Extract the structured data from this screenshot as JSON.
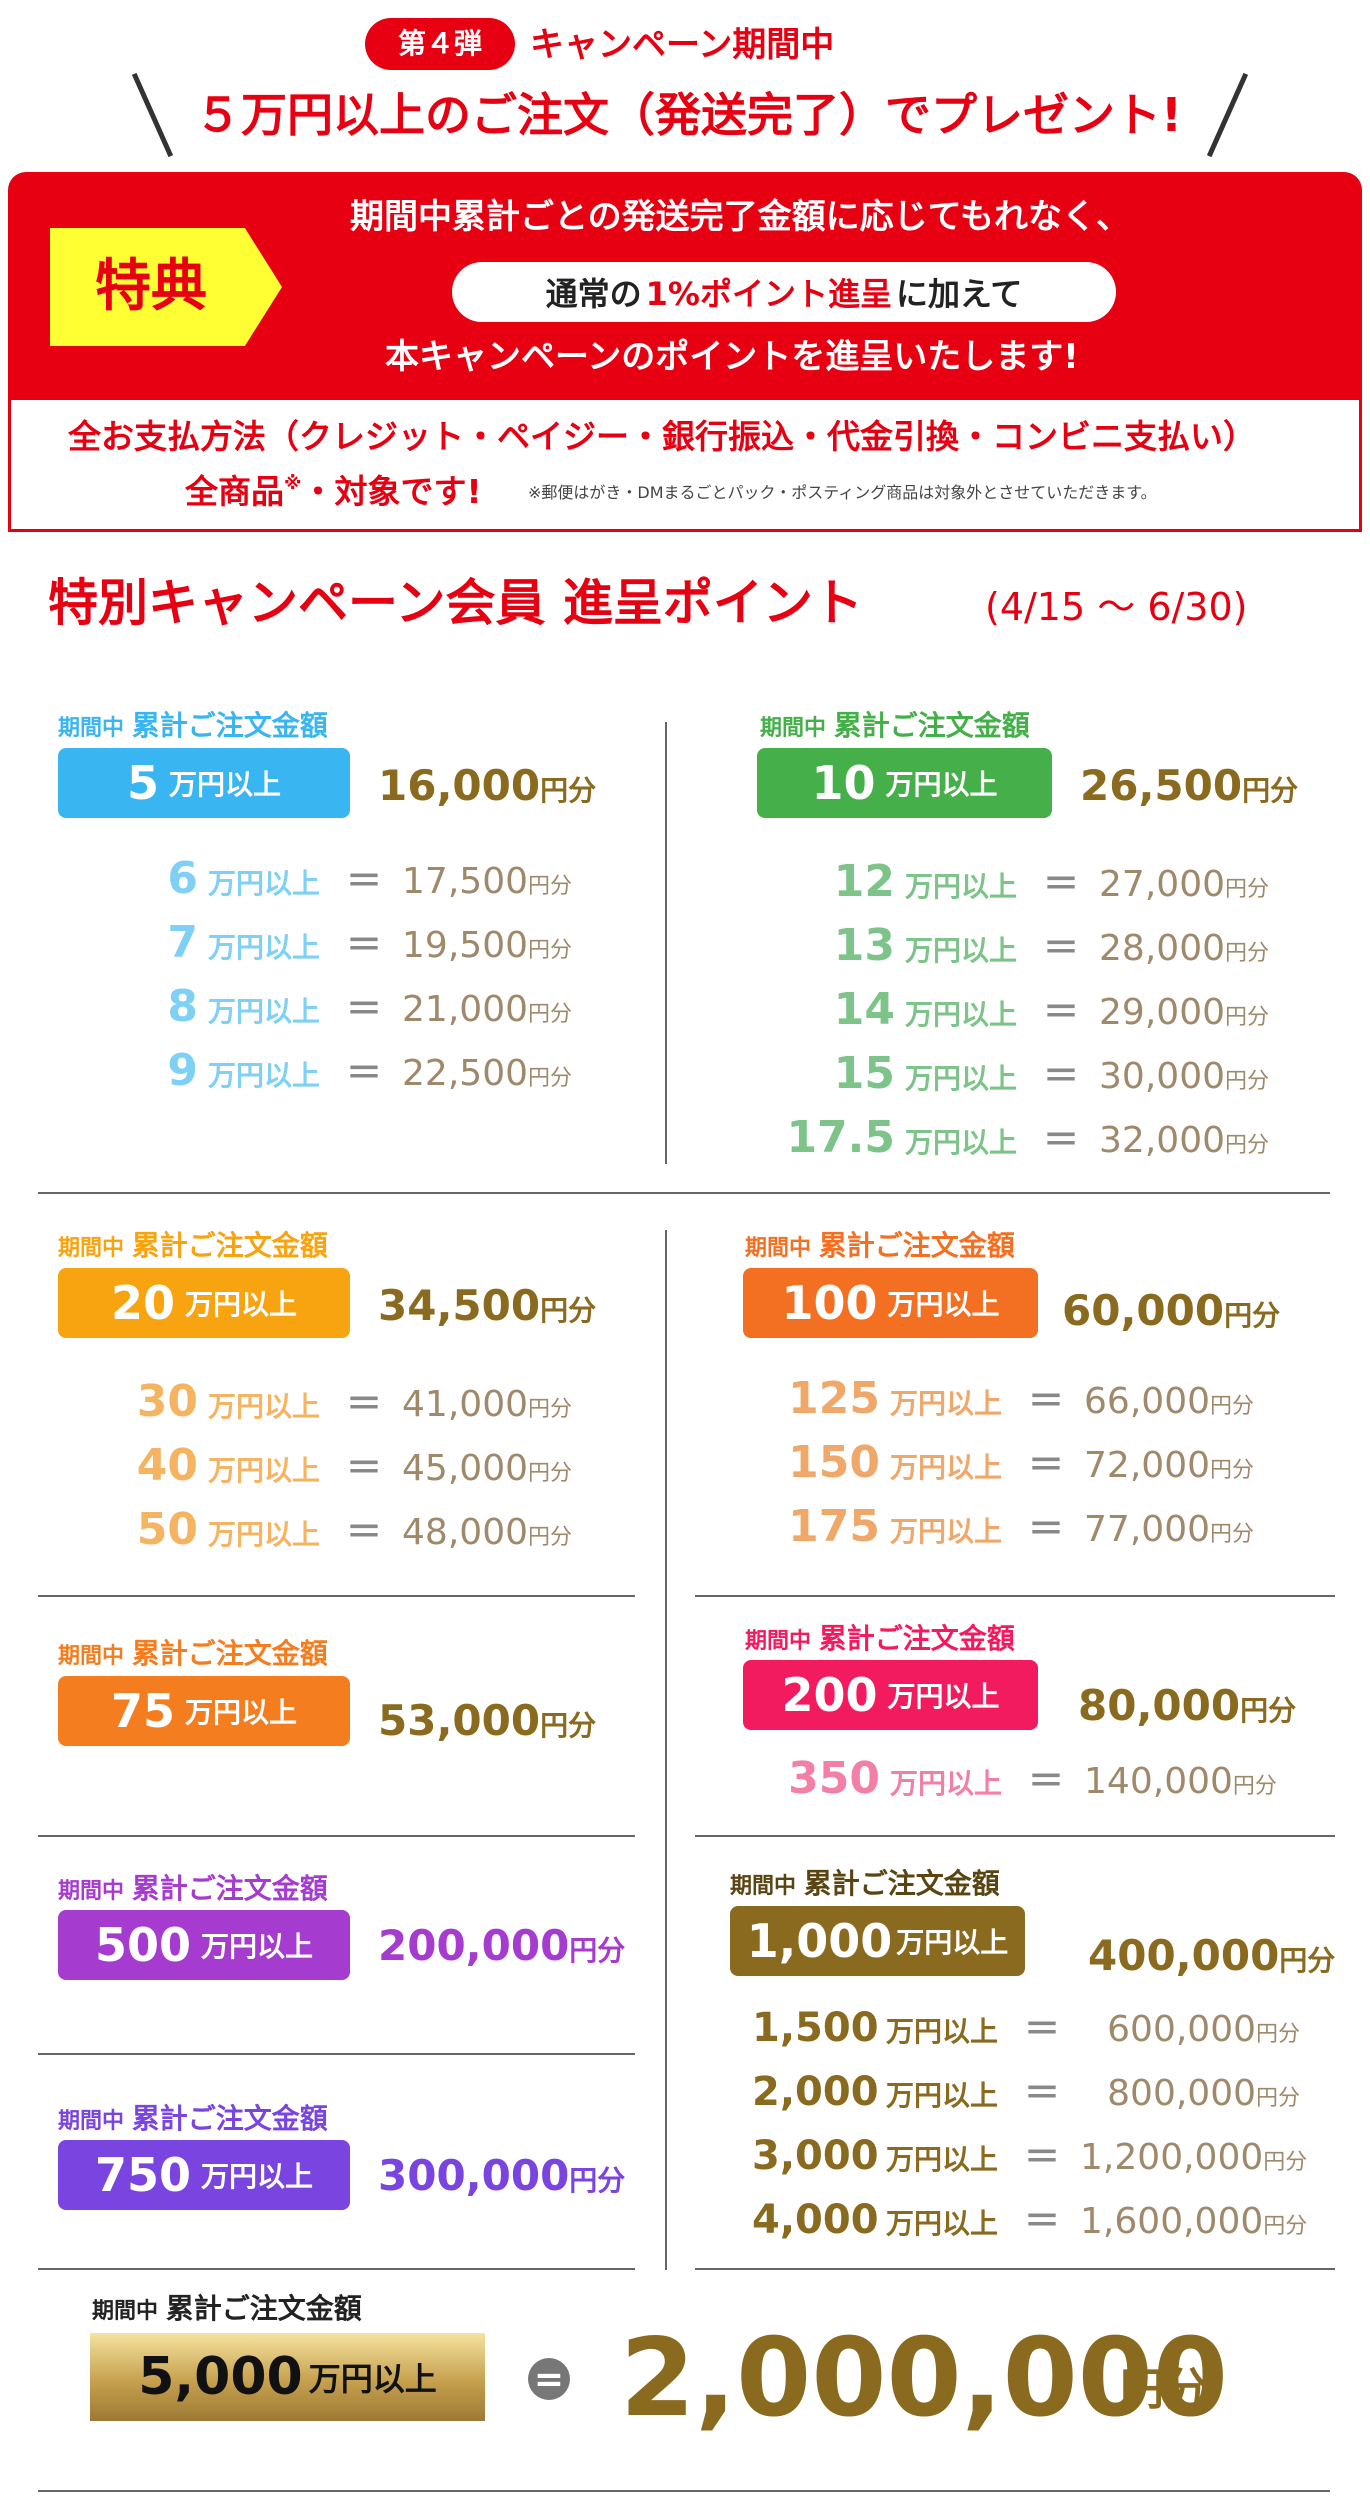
{
  "header": {
    "badge": "第４弾",
    "campaign": "キャンペーン期間中",
    "main": "５万円以上のご注文（発送完了）でプレゼント!"
  },
  "benefit": {
    "tag": "特典",
    "line1": "期間中累計ごとの発送完了金額に応じてもれなく、",
    "pill_a": "通常の",
    "pill_b": "1%ポイント進呈",
    "pill_c": "に加えて",
    "line3": "本キャンペーンのポイントを進呈いたします!",
    "payment": "全お支払方法（クレジット・ペイジー・銀行振込・代金引換・コンビニ支払い）",
    "all_a": "全商品",
    "all_mark": "※",
    "all_b": "・対象です!",
    "note": "※郵便はがき・DMまるごとパック・ポスティング商品は対象外とさせていただきます。"
  },
  "section": {
    "title": "特別キャンペーン会員 進呈ポイント",
    "date": "(4/15 ～ 6/30)"
  },
  "common": {
    "label_small": "期間中",
    "label_big": "累計ご注文金額",
    "unit": "万円以上",
    "yen": "円分",
    "eq": "＝"
  },
  "tiers": {
    "t5": {
      "amount": "5",
      "points": "16,000",
      "color": "#39b5f2",
      "sub": "#7fd0f5",
      "rows": [
        {
          "a": "6",
          "v": "17,500"
        },
        {
          "a": "7",
          "v": "19,500"
        },
        {
          "a": "8",
          "v": "21,000"
        },
        {
          "a": "9",
          "v": "22,500"
        }
      ]
    },
    "t10": {
      "amount": "10",
      "points": "26,500",
      "color": "#45b04a",
      "sub": "#7ec48a",
      "rows": [
        {
          "a": "12",
          "v": "27,000"
        },
        {
          "a": "13",
          "v": "28,000"
        },
        {
          "a": "14",
          "v": "29,000"
        },
        {
          "a": "15",
          "v": "30,000"
        },
        {
          "a": "17.5",
          "v": "32,000"
        }
      ]
    },
    "t20": {
      "amount": "20",
      "points": "34,500",
      "color": "#f8a310",
      "sub": "#f5b462",
      "rows": [
        {
          "a": "30",
          "v": "41,000"
        },
        {
          "a": "40",
          "v": "45,000"
        },
        {
          "a": "50",
          "v": "48,000"
        }
      ]
    },
    "t100": {
      "amount": "100",
      "points": "60,000",
      "color": "#f36f21",
      "sub": "#f0a86a",
      "rows": [
        {
          "a": "125",
          "v": "66,000"
        },
        {
          "a": "150",
          "v": "72,000"
        },
        {
          "a": "175",
          "v": "77,000"
        }
      ]
    },
    "t75": {
      "amount": "75",
      "points": "53,000",
      "color": "#f47d1f"
    },
    "t200": {
      "amount": "200",
      "points": "80,000",
      "color": "#f21b5f",
      "sub": "#f27fa6",
      "rows": [
        {
          "a": "350",
          "v": "140,000"
        }
      ]
    },
    "t500": {
      "amount": "500",
      "points": "200,000",
      "color": "#a53ccf"
    },
    "t1000": {
      "amount": "1,000",
      "points": "400,000",
      "color": "#8a6a1e",
      "sub": "#8a6a1e",
      "rows": [
        {
          "a": "1,500",
          "v": "600,000"
        },
        {
          "a": "2,000",
          "v": "800,000"
        },
        {
          "a": "3,000",
          "v": "1,200,000"
        },
        {
          "a": "4,000",
          "v": "1,600,000"
        }
      ]
    },
    "t750": {
      "amount": "750",
      "points": "300,000",
      "color": "#7a44e0"
    },
    "t5000": {
      "amount": "5,000",
      "unit": "万円以上",
      "points": "2,000,000",
      "yen": "円分"
    }
  }
}
